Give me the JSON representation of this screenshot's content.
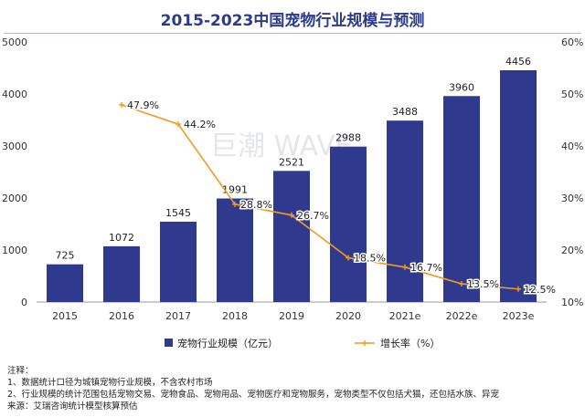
{
  "title": "2015-2023中国宠物行业规模与预测",
  "watermark": "巨潮 WAVE",
  "chart_data": {
    "type": "bar",
    "categories": [
      "2015",
      "2016",
      "2017",
      "2018",
      "2019",
      "2020",
      "2021e",
      "2022e",
      "2023e"
    ],
    "series": [
      {
        "name": "宠物行业规模（亿元）",
        "type": "bar",
        "axis": "left",
        "values": [
          725,
          1072,
          1545,
          1991,
          2521,
          2988,
          3488,
          3960,
          4456
        ]
      },
      {
        "name": "增长率（%）",
        "type": "line",
        "axis": "right",
        "values": [
          null,
          47.9,
          44.2,
          28.8,
          26.7,
          18.5,
          16.7,
          13.5,
          12.5
        ]
      }
    ],
    "bar_labels": [
      "725",
      "1072",
      "1545",
      "1991",
      "2521",
      "2988",
      "3488",
      "3960",
      "4456"
    ],
    "line_labels": [
      "",
      "47.9%",
      "44.2%",
      "28.8%",
      "26.7%",
      "18.5%",
      "16.7%",
      "13.5%",
      "12.5%"
    ],
    "yleft_ticks": [
      "0",
      "1000",
      "2000",
      "3000",
      "4000",
      "5000"
    ],
    "yright_ticks": [
      "10%",
      "20%",
      "30%",
      "40%",
      "50%",
      "60%"
    ],
    "ylim_left": [
      0,
      5000
    ],
    "ylim_right": [
      10,
      60
    ],
    "legend_position": "bottom",
    "colors": {
      "bar": "#2f3a8f",
      "line": "#f39a1e",
      "title": "#2b3a8b"
    }
  },
  "notes": {
    "heading": "注释：",
    "line1": "1、数据统计口径为城镇宠物行业规模，不含农村市场",
    "line2": "2、行业规模的统计范围包括宠物交易、宠物食品、宠物用品、宠物医疗和宠物服务，宠物类型不仅包括犬猫，还包括水族、异宠",
    "line3": "来源：艾瑞咨询统计模型核算预估"
  }
}
